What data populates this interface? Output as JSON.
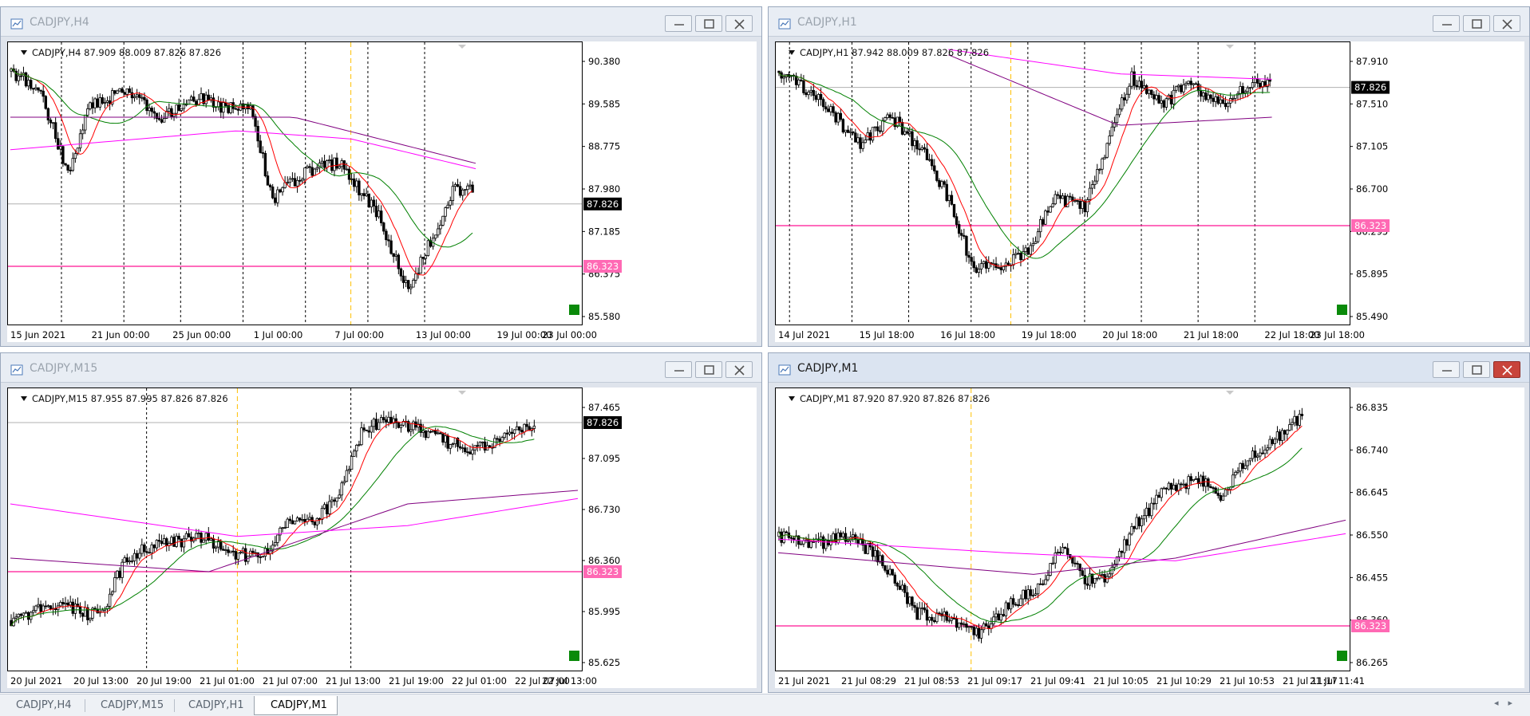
{
  "windows": [
    {
      "title": "CADJPY,H4",
      "active": false,
      "info": "CADJPY,H4  87.909 88.009 87.826 87.826",
      "yticks": [
        "90.380",
        "89.585",
        "88.775",
        "87.980",
        "87.185",
        "86.375",
        "85.580"
      ],
      "xticks": [
        "15 Jun 2021",
        "21 Jun 00:00",
        "25 Jun 00:00",
        "1 Jul 00:00",
        "7 Jul 00:00",
        "13 Jul 00:00",
        "19 Jul 00:00",
        "23 Jul 00:00"
      ],
      "price_label": "87.826",
      "level_label": "86.323"
    },
    {
      "title": "CADJPY,H1",
      "active": false,
      "info": "CADJPY,H1  87.942 88.009 87.826 87.826",
      "yticks": [
        "87.910",
        "87.510",
        "87.105",
        "86.700",
        "86.295",
        "85.895",
        "85.490"
      ],
      "xticks": [
        "14 Jul 2021",
        "15 Jul 18:00",
        "16 Jul 18:00",
        "19 Jul 18:00",
        "20 Jul 18:00",
        "21 Jul 18:00",
        "22 Jul 18:00",
        "23 Jul 18:00"
      ],
      "price_label": "87.826",
      "level_label": "86.323"
    },
    {
      "title": "CADJPY,M15",
      "active": false,
      "info": "CADJPY,M15  87.955 87.995 87.826 87.826",
      "yticks": [
        "87.465",
        "87.095",
        "86.730",
        "86.360",
        "85.995",
        "85.625"
      ],
      "xticks": [
        "20 Jul 2021",
        "20 Jul 13:00",
        "20 Jul 19:00",
        "21 Jul 01:00",
        "21 Jul 07:00",
        "21 Jul 13:00",
        "21 Jul 19:00",
        "22 Jul 01:00",
        "22 Jul 07:00",
        "22 Jul 13:00"
      ],
      "price_label": "87.826",
      "level_label": "86.323"
    },
    {
      "title": "CADJPY,M1",
      "active": true,
      "info": "CADJPY,M1  87.920 87.920 87.826 87.826",
      "yticks": [
        "86.835",
        "86.740",
        "86.645",
        "86.550",
        "86.455",
        "86.360",
        "86.265"
      ],
      "xticks": [
        "21 Jul 2021",
        "21 Jul 08:29",
        "21 Jul 08:53",
        "21 Jul 09:17",
        "21 Jul 09:41",
        "21 Jul 10:05",
        "21 Jul 10:29",
        "21 Jul 10:53",
        "21 Jul 11:17",
        "21 Jul 11:41"
      ],
      "price_label": "",
      "level_label": "86.323"
    }
  ],
  "tabs": [
    {
      "label": "CADJPY,H4",
      "selected": false
    },
    {
      "label": "CADJPY,M15",
      "selected": false
    },
    {
      "label": "CADJPY,H1",
      "selected": false
    },
    {
      "label": "CADJPY,M1",
      "selected": true
    }
  ],
  "colors": {
    "ma_fast": "#ff0000",
    "ma_mid": "#008000",
    "ma_slow": "#800080",
    "ma_long": "#ff00ff",
    "level": "#ff1493",
    "period_sep": "#000000",
    "cursor_line": "#ffc000",
    "price_bg": "#000000",
    "level_bg": "#ff69b4"
  }
}
